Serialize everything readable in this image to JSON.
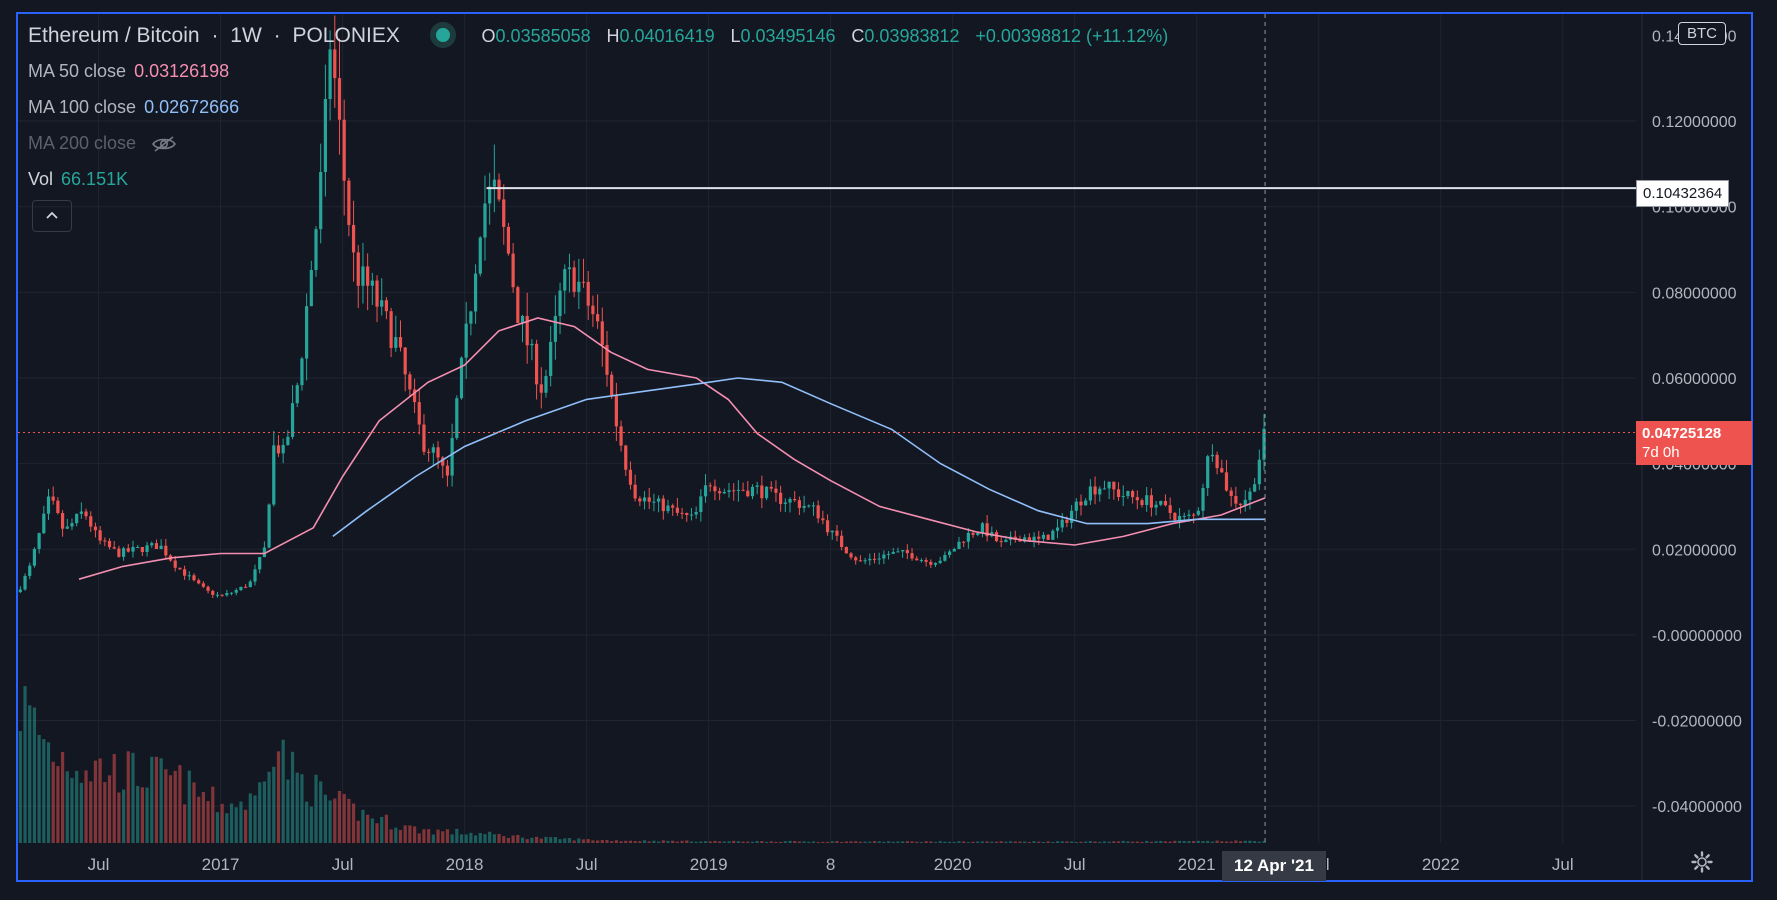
{
  "header": {
    "symbol": "Ethereum / Bitcoin",
    "sep1": "·",
    "interval": "1W",
    "sep2": "·",
    "exchange": "POLONIEX",
    "o_label": "O",
    "o": "0.03585058",
    "h_label": "H",
    "h": "0.04016419",
    "l_label": "L",
    "l": "0.03495146",
    "c_label": "C",
    "c": "0.03983812",
    "change": "+0.00398812 (+11.12%)"
  },
  "indicators": {
    "ma50": {
      "label": "MA 50 close",
      "value": "0.03126198",
      "color": "#f48fb1"
    },
    "ma100": {
      "label": "MA 100 close",
      "value": "0.02672666",
      "color": "#90bff9"
    },
    "ma200": {
      "label": "MA 200 close"
    },
    "vol": {
      "label": "Vol",
      "value": "66.151K"
    }
  },
  "currency_badge": "BTC",
  "collapse_icon": "chevron-up-icon",
  "horizontal_line": {
    "price": 0.10432364,
    "label": "0.10432364",
    "color": "#e0e3eb"
  },
  "last_price": {
    "label": "0.04725128",
    "countdown": "7d 0h",
    "color": "#ef5350"
  },
  "crosshair_date": "12 Apr '21",
  "colors": {
    "up": "#26a69a",
    "down": "#ef5350",
    "background": "#131722",
    "accent": "#2962ff"
  },
  "chart_data": {
    "type": "candlestick",
    "y_ticks": [
      "0.12000000",
      "0.10000000",
      "0.08000000",
      "0.06000000",
      "0.04000000",
      "0.02000000",
      "-0.00000000",
      "-0.02000000",
      "-0.04000000"
    ],
    "y_tick_values": [
      0.12,
      0.1,
      0.08,
      0.06,
      0.04,
      0.02,
      0.0,
      -0.02,
      -0.04
    ],
    "top_tick": "0.14000000",
    "ylim": [
      -0.0486,
      0.145
    ],
    "xlim": [
      2016.17,
      2022.8
    ],
    "x_ticks": [
      {
        "label": "Jul",
        "t": 2016.5
      },
      {
        "label": "2017",
        "t": 2017.0
      },
      {
        "label": "Jul",
        "t": 2017.5
      },
      {
        "label": "2018",
        "t": 2018.0
      },
      {
        "label": "Jul",
        "t": 2018.5
      },
      {
        "label": "2019",
        "t": 2019.0
      },
      {
        "label": "8",
        "t": 2019.5
      },
      {
        "label": "2020",
        "t": 2020.0
      },
      {
        "label": "Jul",
        "t": 2020.5
      },
      {
        "label": "2021",
        "t": 2021.0
      },
      {
        "label": "Jul",
        "t": 2021.5
      },
      {
        "label": "2022",
        "t": 2022.0
      },
      {
        "label": "Jul",
        "t": 2022.5
      }
    ],
    "close_path": [
      [
        2016.17,
        0.01
      ],
      [
        2016.22,
        0.016
      ],
      [
        2016.3,
        0.032
      ],
      [
        2016.36,
        0.024
      ],
      [
        2016.44,
        0.029
      ],
      [
        2016.5,
        0.022
      ],
      [
        2016.58,
        0.019
      ],
      [
        2016.66,
        0.02
      ],
      [
        2016.75,
        0.021
      ],
      [
        2016.82,
        0.016
      ],
      [
        2016.9,
        0.012
      ],
      [
        2016.95,
        0.01
      ],
      [
        2017.0,
        0.009
      ],
      [
        2017.05,
        0.01
      ],
      [
        2017.12,
        0.012
      ],
      [
        2017.18,
        0.02
      ],
      [
        2017.22,
        0.045
      ],
      [
        2017.26,
        0.042
      ],
      [
        2017.32,
        0.06
      ],
      [
        2017.37,
        0.085
      ],
      [
        2017.42,
        0.11
      ],
      [
        2017.45,
        0.14
      ],
      [
        2017.5,
        0.11
      ],
      [
        2017.55,
        0.085
      ],
      [
        2017.62,
        0.08
      ],
      [
        2017.67,
        0.074
      ],
      [
        2017.72,
        0.068
      ],
      [
        2017.78,
        0.055
      ],
      [
        2017.83,
        0.045
      ],
      [
        2017.88,
        0.042
      ],
      [
        2017.93,
        0.036
      ],
      [
        2017.97,
        0.055
      ],
      [
        2018.02,
        0.075
      ],
      [
        2018.07,
        0.1
      ],
      [
        2018.12,
        0.104
      ],
      [
        2018.18,
        0.089
      ],
      [
        2018.22,
        0.075
      ],
      [
        2018.28,
        0.064
      ],
      [
        2018.32,
        0.057
      ],
      [
        2018.36,
        0.068
      ],
      [
        2018.4,
        0.082
      ],
      [
        2018.45,
        0.084
      ],
      [
        2018.5,
        0.078
      ],
      [
        2018.54,
        0.073
      ],
      [
        2018.58,
        0.063
      ],
      [
        2018.62,
        0.05
      ],
      [
        2018.66,
        0.04
      ],
      [
        2018.7,
        0.033
      ],
      [
        2018.76,
        0.031
      ],
      [
        2018.82,
        0.03
      ],
      [
        2018.88,
        0.028
      ],
      [
        2018.94,
        0.027
      ],
      [
        2019.0,
        0.036
      ],
      [
        2019.06,
        0.034
      ],
      [
        2019.12,
        0.034
      ],
      [
        2019.2,
        0.034
      ],
      [
        2019.28,
        0.032
      ],
      [
        2019.36,
        0.031
      ],
      [
        2019.44,
        0.029
      ],
      [
        2019.5,
        0.024
      ],
      [
        2019.56,
        0.02
      ],
      [
        2019.62,
        0.017
      ],
      [
        2019.68,
        0.018
      ],
      [
        2019.74,
        0.019
      ],
      [
        2019.82,
        0.019
      ],
      [
        2019.9,
        0.017
      ],
      [
        2019.97,
        0.018
      ],
      [
        2020.05,
        0.023
      ],
      [
        2020.12,
        0.025
      ],
      [
        2020.2,
        0.021
      ],
      [
        2020.28,
        0.023
      ],
      [
        2020.36,
        0.022
      ],
      [
        2020.44,
        0.025
      ],
      [
        2020.5,
        0.03
      ],
      [
        2020.56,
        0.034
      ],
      [
        2020.62,
        0.035
      ],
      [
        2020.68,
        0.033
      ],
      [
        2020.74,
        0.032
      ],
      [
        2020.82,
        0.031
      ],
      [
        2020.88,
        0.029
      ],
      [
        2020.94,
        0.027
      ],
      [
        2021.0,
        0.028
      ],
      [
        2021.06,
        0.045
      ],
      [
        2021.1,
        0.038
      ],
      [
        2021.14,
        0.032
      ],
      [
        2021.18,
        0.031
      ],
      [
        2021.22,
        0.033
      ],
      [
        2021.25,
        0.04
      ],
      [
        2021.28,
        0.047
      ]
    ],
    "ma50_path": [
      [
        2016.42,
        0.013
      ],
      [
        2016.6,
        0.016
      ],
      [
        2016.8,
        0.018
      ],
      [
        2017.0,
        0.019
      ],
      [
        2017.18,
        0.019
      ],
      [
        2017.38,
        0.025
      ],
      [
        2017.5,
        0.037
      ],
      [
        2017.65,
        0.05
      ],
      [
        2017.85,
        0.059
      ],
      [
        2018.0,
        0.063
      ],
      [
        2018.14,
        0.071
      ],
      [
        2018.3,
        0.074
      ],
      [
        2018.45,
        0.072
      ],
      [
        2018.6,
        0.066
      ],
      [
        2018.75,
        0.062
      ],
      [
        2018.95,
        0.06
      ],
      [
        2019.08,
        0.055
      ],
      [
        2019.2,
        0.047
      ],
      [
        2019.35,
        0.041
      ],
      [
        2019.5,
        0.036
      ],
      [
        2019.7,
        0.03
      ],
      [
        2019.9,
        0.027
      ],
      [
        2020.1,
        0.024
      ],
      [
        2020.3,
        0.022
      ],
      [
        2020.5,
        0.021
      ],
      [
        2020.7,
        0.023
      ],
      [
        2020.9,
        0.026
      ],
      [
        2021.1,
        0.028
      ],
      [
        2021.28,
        0.032
      ]
    ],
    "ma100_path": [
      [
        2017.46,
        0.023
      ],
      [
        2017.6,
        0.029
      ],
      [
        2017.8,
        0.037
      ],
      [
        2018.0,
        0.044
      ],
      [
        2018.25,
        0.05
      ],
      [
        2018.5,
        0.055
      ],
      [
        2018.75,
        0.057
      ],
      [
        2019.0,
        0.059
      ],
      [
        2019.12,
        0.06
      ],
      [
        2019.3,
        0.059
      ],
      [
        2019.5,
        0.054
      ],
      [
        2019.75,
        0.048
      ],
      [
        2019.95,
        0.04
      ],
      [
        2020.15,
        0.034
      ],
      [
        2020.35,
        0.029
      ],
      [
        2020.55,
        0.026
      ],
      [
        2020.8,
        0.026
      ],
      [
        2021.0,
        0.027
      ],
      [
        2021.28,
        0.027
      ]
    ],
    "volume_profile": [
      [
        2016.17,
        0.85
      ],
      [
        2016.3,
        0.55
      ],
      [
        2016.45,
        0.45
      ],
      [
        2016.6,
        0.42
      ],
      [
        2016.8,
        0.38
      ],
      [
        2017.0,
        0.22
      ],
      [
        2017.15,
        0.25
      ],
      [
        2017.2,
        0.65
      ],
      [
        2017.3,
        0.4
      ],
      [
        2017.45,
        0.25
      ],
      [
        2017.6,
        0.16
      ],
      [
        2017.8,
        0.08
      ],
      [
        2018.0,
        0.06
      ],
      [
        2018.3,
        0.03
      ],
      [
        2018.6,
        0.015
      ],
      [
        2019.0,
        0.01
      ],
      [
        2020.0,
        0.008
      ],
      [
        2021.0,
        0.01
      ],
      [
        2021.28,
        0.012
      ]
    ]
  }
}
